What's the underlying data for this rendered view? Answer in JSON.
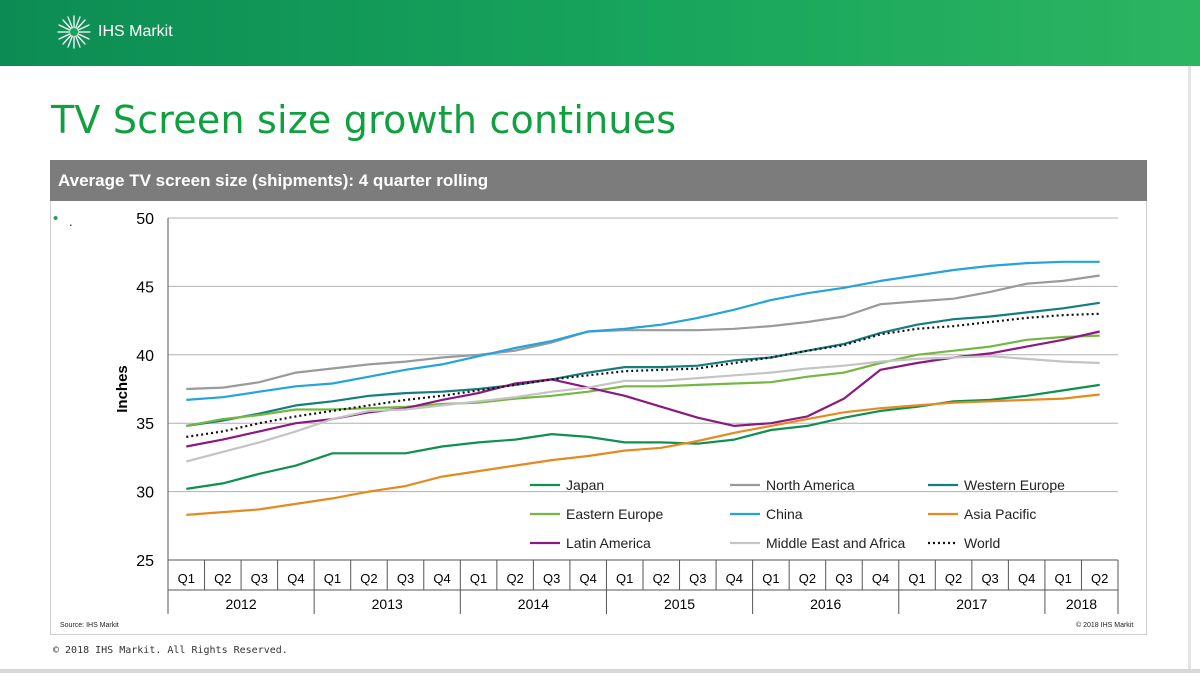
{
  "brand": {
    "name": "IHS Markit"
  },
  "slide": {
    "title": "TV Screen size growth continues",
    "bullet_text": "."
  },
  "panel": {
    "title": "Average TV screen size (shipments): 4 quarter rolling"
  },
  "footer": {
    "source": "Source: IHS Markit",
    "chart_copyright": "© 2018 IHS Markit",
    "copyright": "© 2018 IHS Markit. All Rights Reserved."
  },
  "colors": {
    "header_green": "#18a55c",
    "title_green": "#10a040",
    "panel_gray": "#7c7c7c"
  },
  "chart_data": {
    "type": "line",
    "title": "Average TV screen size (shipments): 4 quarter rolling",
    "ylabel": "Inches",
    "xlabel": "",
    "ylim": [
      25,
      50
    ],
    "yticks": [
      25,
      30,
      35,
      40,
      45,
      50
    ],
    "grid": true,
    "legend_position": "bottom-right",
    "categories": [
      "Q1",
      "Q2",
      "Q3",
      "Q4",
      "Q1",
      "Q2",
      "Q3",
      "Q4",
      "Q1",
      "Q2",
      "Q3",
      "Q4",
      "Q1",
      "Q2",
      "Q3",
      "Q4",
      "Q1",
      "Q2",
      "Q3",
      "Q4",
      "Q1",
      "Q2",
      "Q3",
      "Q4",
      "Q1",
      "Q2"
    ],
    "years": [
      {
        "label": "2012",
        "quarters": 4
      },
      {
        "label": "2013",
        "quarters": 4
      },
      {
        "label": "2014",
        "quarters": 4
      },
      {
        "label": "2015",
        "quarters": 4
      },
      {
        "label": "2016",
        "quarters": 4
      },
      {
        "label": "2017",
        "quarters": 4
      },
      {
        "label": "2018",
        "quarters": 2
      }
    ],
    "series": [
      {
        "name": "Japan",
        "color": "#109050",
        "dash": false,
        "values": [
          30.2,
          30.6,
          31.3,
          31.9,
          32.8,
          32.8,
          32.8,
          33.3,
          33.6,
          33.8,
          34.2,
          34.0,
          33.6,
          33.6,
          33.5,
          33.8,
          34.5,
          34.8,
          35.4,
          35.9,
          36.2,
          36.6,
          36.7,
          37.0,
          37.4,
          37.8
        ]
      },
      {
        "name": "North America",
        "color": "#9a9a9a",
        "dash": false,
        "values": [
          37.5,
          37.6,
          38.0,
          38.7,
          39.0,
          39.3,
          39.5,
          39.8,
          40.0,
          40.3,
          40.9,
          41.7,
          41.8,
          41.8,
          41.8,
          41.9,
          42.1,
          42.4,
          42.8,
          43.7,
          43.9,
          44.1,
          44.6,
          45.2,
          45.4,
          45.8
        ]
      },
      {
        "name": "Western Europe",
        "color": "#157d7d",
        "dash": false,
        "values": [
          34.8,
          35.2,
          35.7,
          36.3,
          36.6,
          37.0,
          37.2,
          37.3,
          37.5,
          37.8,
          38.2,
          38.7,
          39.1,
          39.1,
          39.2,
          39.6,
          39.8,
          40.3,
          40.8,
          41.6,
          42.2,
          42.6,
          42.8,
          43.1,
          43.4,
          43.8
        ]
      },
      {
        "name": "Eastern Europe",
        "color": "#76b743",
        "dash": false,
        "values": [
          34.8,
          35.3,
          35.6,
          36.0,
          36.0,
          36.1,
          36.2,
          36.4,
          36.5,
          36.8,
          37.0,
          37.3,
          37.7,
          37.7,
          37.8,
          37.9,
          38.0,
          38.4,
          38.7,
          39.4,
          40.0,
          40.3,
          40.6,
          41.1,
          41.3,
          41.4
        ]
      },
      {
        "name": "China",
        "color": "#24a3dc",
        "dash": false,
        "values": [
          36.7,
          36.9,
          37.3,
          37.7,
          37.9,
          38.4,
          38.9,
          39.3,
          39.9,
          40.5,
          41.0,
          41.7,
          41.9,
          42.2,
          42.7,
          43.3,
          44.0,
          44.5,
          44.9,
          45.4,
          45.8,
          46.2,
          46.5,
          46.7,
          46.8,
          46.8
        ]
      },
      {
        "name": "Asia Pacific",
        "color": "#e58a1e",
        "dash": false,
        "values": [
          28.3,
          28.5,
          28.7,
          29.1,
          29.5,
          30.0,
          30.4,
          31.1,
          31.5,
          31.9,
          32.3,
          32.6,
          33.0,
          33.2,
          33.7,
          34.3,
          34.8,
          35.3,
          35.8,
          36.1,
          36.3,
          36.5,
          36.6,
          36.7,
          36.8,
          37.1
        ]
      },
      {
        "name": "Latin America",
        "color": "#8b1a7f",
        "dash": false,
        "values": [
          33.3,
          33.8,
          34.4,
          35.0,
          35.3,
          35.8,
          36.1,
          36.7,
          37.2,
          37.9,
          38.2,
          37.6,
          37.0,
          36.2,
          35.4,
          34.8,
          35.0,
          35.5,
          36.8,
          38.9,
          39.4,
          39.8,
          40.1,
          40.6,
          41.1,
          41.7
        ]
      },
      {
        "name": "Middle East and Africa",
        "color": "#c4c4c4",
        "dash": false,
        "values": [
          32.2,
          32.9,
          33.6,
          34.4,
          35.3,
          35.9,
          36.0,
          36.3,
          36.6,
          36.9,
          37.3,
          37.6,
          38.1,
          38.1,
          38.3,
          38.5,
          38.7,
          39.0,
          39.2,
          39.5,
          39.7,
          39.8,
          39.9,
          39.7,
          39.5,
          39.4
        ]
      },
      {
        "name": "World",
        "color": "#111111",
        "dash": true,
        "values": [
          34.0,
          34.4,
          35.0,
          35.5,
          35.9,
          36.3,
          36.7,
          37.0,
          37.4,
          37.8,
          38.2,
          38.5,
          38.8,
          38.9,
          39.0,
          39.4,
          39.8,
          40.3,
          40.7,
          41.5,
          41.9,
          42.1,
          42.4,
          42.7,
          42.9,
          43.0
        ]
      }
    ]
  }
}
